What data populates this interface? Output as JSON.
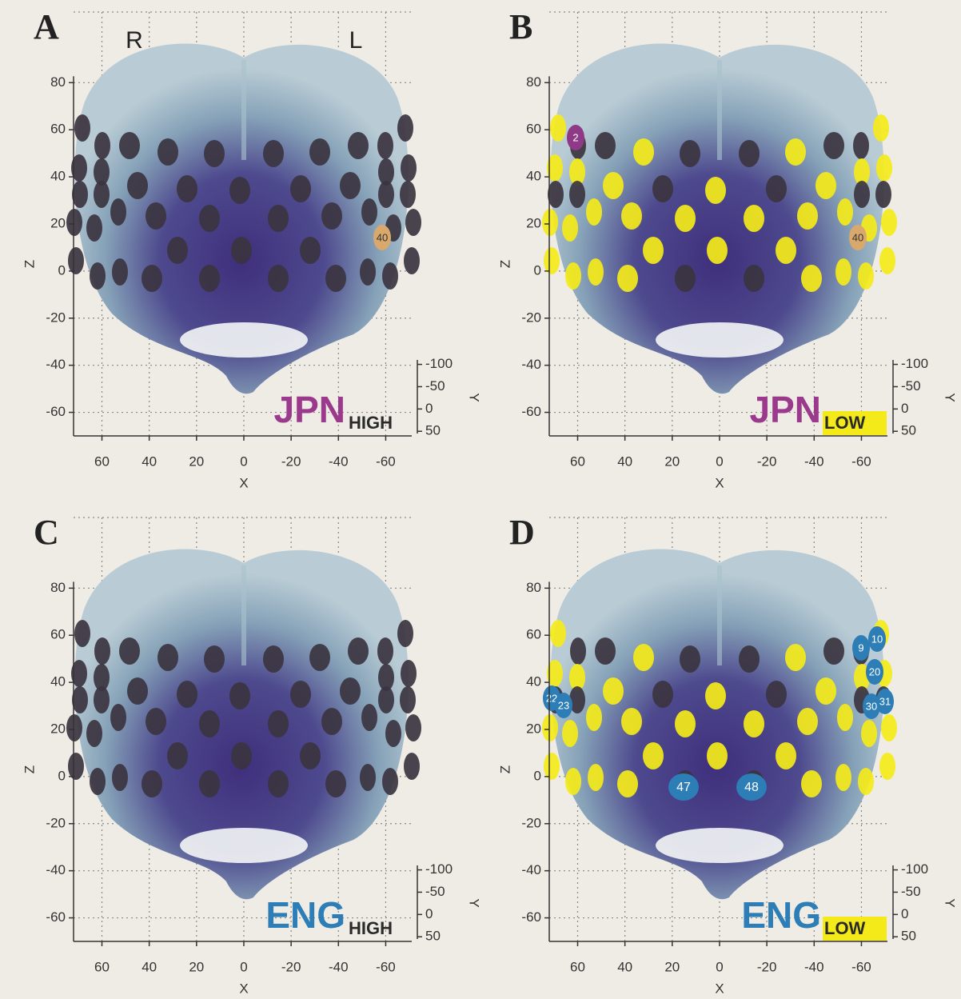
{
  "axes": {
    "x_label": "X",
    "z_label": "Z",
    "y_label": "Y",
    "xlim": [
      72,
      -71
    ],
    "zlim": [
      -70,
      110
    ],
    "ylim": [
      -110,
      55
    ],
    "xticks": [
      60,
      40,
      20,
      0,
      -20,
      -40,
      -60
    ],
    "zticks": [
      80,
      60,
      40,
      20,
      0,
      -20,
      -40,
      -60
    ],
    "yticks": [
      -100,
      -50,
      0,
      50
    ]
  },
  "colors": {
    "channel": "#3b3440",
    "significant": "#f4ea1a"
  },
  "panels": [
    {
      "letter": "A",
      "hemispheres": [
        "R",
        "L"
      ],
      "language": "JPN",
      "language_color": "#9b3a8d",
      "condition": "HIGH",
      "condition_highlight": false,
      "highlight_channels": false,
      "channels": [
        {
          "label": "40",
          "color": "#d9a86c"
        }
      ]
    },
    {
      "letter": "B",
      "language": "JPN",
      "language_color": "#9b3a8d",
      "condition": "LOW",
      "condition_highlight": true,
      "highlight_channels": true,
      "channels": [
        {
          "label": "2",
          "color": "#8e3a86"
        },
        {
          "label": "40",
          "color": "#d9a86c"
        }
      ]
    },
    {
      "letter": "C",
      "language": "ENG",
      "language_color": "#2d7db6",
      "condition": "HIGH",
      "condition_highlight": false,
      "highlight_channels": false,
      "channels": []
    },
    {
      "letter": "D",
      "language": "ENG",
      "language_color": "#2d7db6",
      "condition": "LOW",
      "condition_highlight": true,
      "highlight_channels": true,
      "channels": [
        {
          "label": "22",
          "color": "#2d7db6"
        },
        {
          "label": "23",
          "color": "#2d7db6"
        },
        {
          "label": "9",
          "color": "#2d7db6"
        },
        {
          "label": "10",
          "color": "#2d7db6"
        },
        {
          "label": "20",
          "color": "#2d7db6"
        },
        {
          "label": "30",
          "color": "#2d7db6"
        },
        {
          "label": "31",
          "color": "#2d7db6"
        },
        {
          "label": "47",
          "color": "#2d7db6"
        },
        {
          "label": "48",
          "color": "#2d7db6"
        }
      ]
    }
  ]
}
